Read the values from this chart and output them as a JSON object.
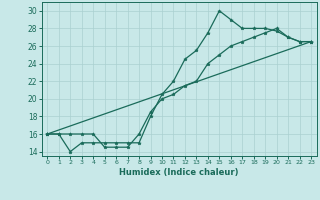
{
  "xlabel": "Humidex (Indice chaleur)",
  "ylabel": "",
  "bg_color": "#c8e8e8",
  "line_color": "#1a6b5a",
  "grid_color": "#aad0d0",
  "xlim": [
    -0.5,
    23.5
  ],
  "ylim": [
    13.5,
    31
  ],
  "xticks": [
    0,
    1,
    2,
    3,
    4,
    5,
    6,
    7,
    8,
    9,
    10,
    11,
    12,
    13,
    14,
    15,
    16,
    17,
    18,
    19,
    20,
    21,
    22,
    23
  ],
  "yticks": [
    14,
    16,
    18,
    20,
    22,
    24,
    26,
    28,
    30
  ],
  "line1_x": [
    0,
    1,
    2,
    3,
    4,
    5,
    6,
    7,
    8,
    9,
    10,
    11,
    12,
    13,
    14,
    15,
    16,
    17,
    18,
    19,
    20,
    21,
    22,
    23
  ],
  "line1_y": [
    16,
    16,
    14,
    15,
    15,
    15,
    15,
    15,
    15,
    18,
    20.5,
    22,
    24.5,
    25.5,
    27.5,
    30,
    29,
    28,
    28,
    28,
    27.7,
    27,
    26.5,
    26.5
  ],
  "line2_x": [
    0,
    1,
    2,
    3,
    4,
    5,
    6,
    7,
    8,
    9,
    10,
    11,
    12,
    13,
    14,
    15,
    16,
    17,
    18,
    19,
    20,
    21,
    22,
    23
  ],
  "line2_y": [
    16,
    16,
    16,
    16,
    16,
    14.5,
    14.5,
    14.5,
    16,
    18.5,
    20,
    20.5,
    21.5,
    22,
    24,
    25,
    26,
    26.5,
    27,
    27.5,
    28,
    27,
    26.5,
    26.5
  ],
  "line3_x": [
    0,
    23
  ],
  "line3_y": [
    16,
    26.5
  ]
}
